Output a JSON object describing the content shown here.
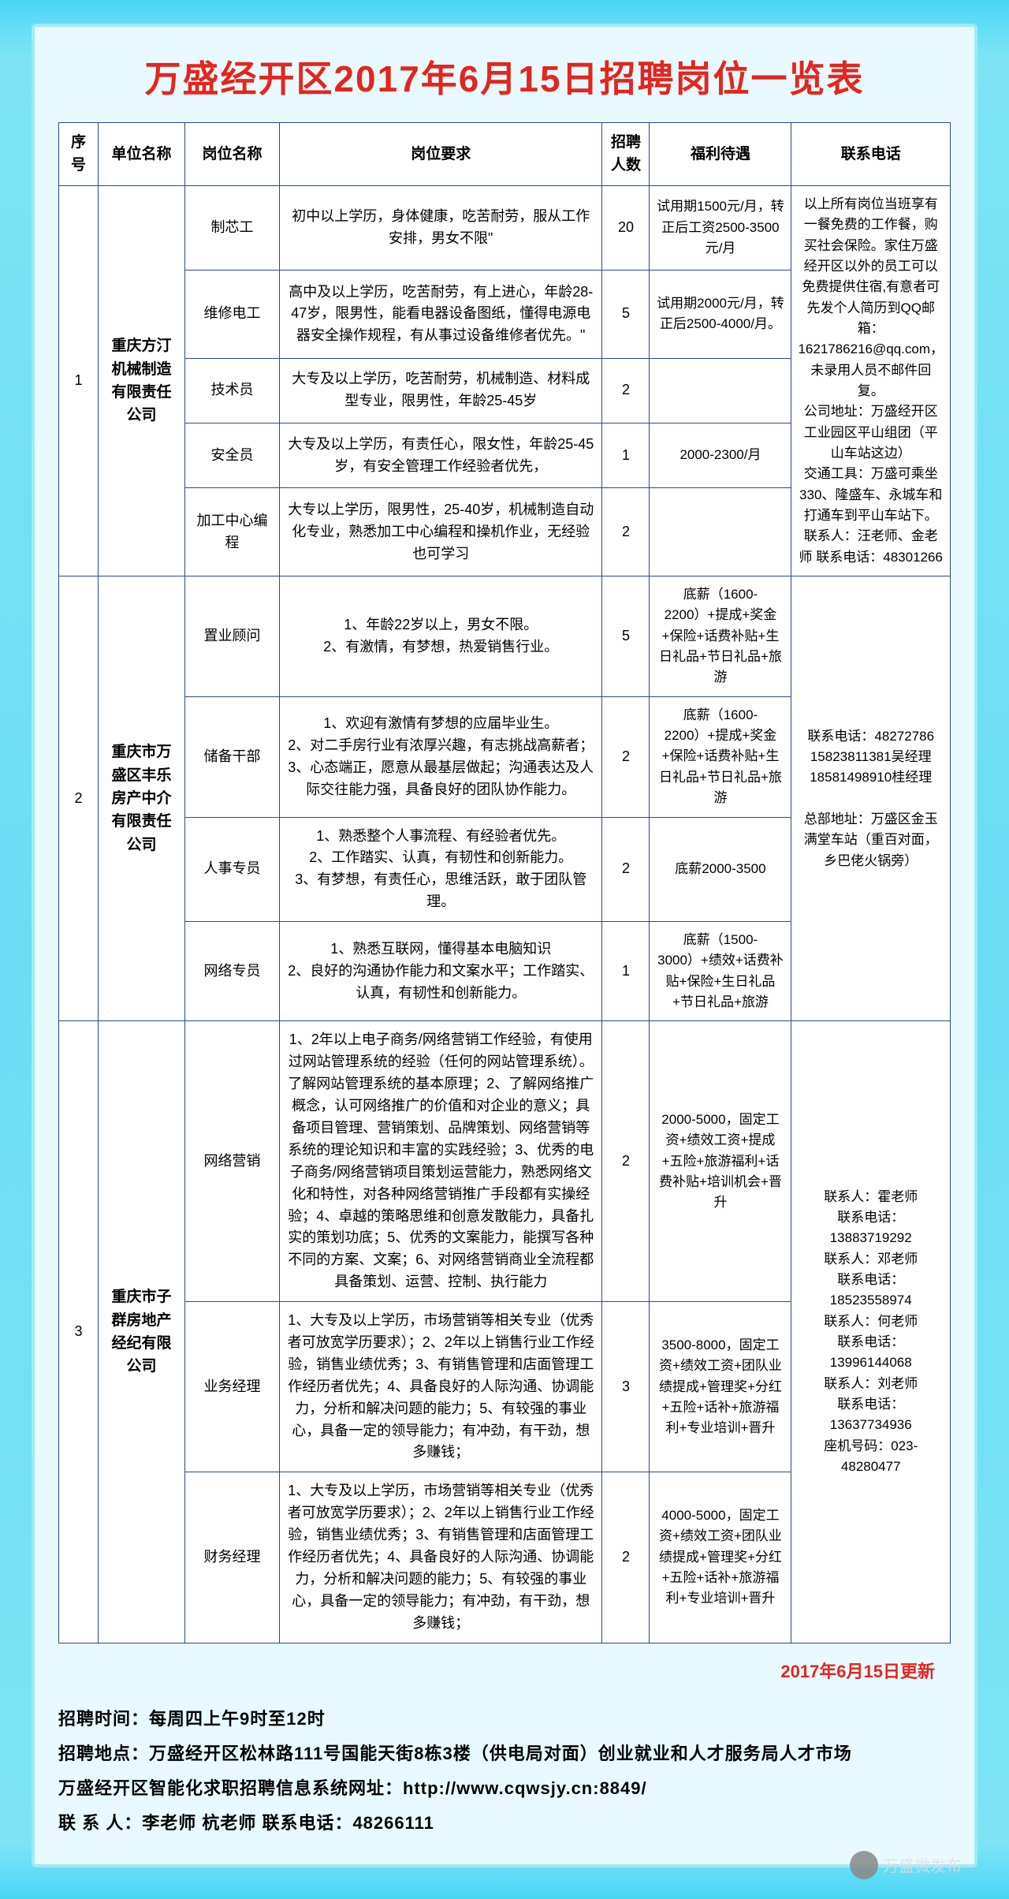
{
  "title": "万盛经开区2017年6月15日招聘岗位一览表",
  "headers": {
    "no": "序号",
    "company": "单位名称",
    "position": "岗位名称",
    "requirement": "岗位要求",
    "count": "招聘人数",
    "benefit": "福利待遇",
    "contact": "联系电话"
  },
  "groups": [
    {
      "no": "1",
      "company": "重庆方汀机械制造有限责任公司",
      "contact": "以上所有岗位当班享有一餐免费的工作餐，购买社会保险。家住万盛经开区以外的员工可以免费提供住宿,有意者可先发个人简历到QQ邮箱：1621786216@qq.com，未录用人员不邮件回复。\n公司地址：万盛经开区工业园区平山组团（平山车站这边）\n交通工具：万盛可乘坐330、隆盛车、永城车和打通车到平山车站下。\n联系人：汪老师、金老师    联系电话：48301266",
      "rows": [
        {
          "pos": "制芯工",
          "req": "初中以上学历，身体健康，吃苦耐劳，服从工作安排，男女不限\"",
          "cnt": "20",
          "ben": "试用期1500元/月，转正后工资2500-3500元/月"
        },
        {
          "pos": "维修电工",
          "req": "高中及以上学历，吃苦耐劳，有上进心，年龄28-47岁，限男性，能看电器设备图纸，懂得电源电器安全操作规程，有从事过设备维修者优先。\"",
          "cnt": "5",
          "ben": "试用期2000元/月，转正后2500-4000/月。"
        },
        {
          "pos": "技术员",
          "req": "大专及以上学历，吃苦耐劳，机械制造、材料成型专业，限男性，年龄25-45岁",
          "cnt": "2",
          "ben": ""
        },
        {
          "pos": "安全员",
          "req": "大专及以上学历，有责任心，限女性，年龄25-45岁，有安全管理工作经验者优先，",
          "cnt": "1",
          "ben": "2000-2300/月"
        },
        {
          "pos": "加工中心编程",
          "req": "大专以上学历，限男性，25-40岁，机械制造自动化专业，熟悉加工中心编程和操机作业，无经验也可学习",
          "cnt": "2",
          "ben": ""
        }
      ]
    },
    {
      "no": "2",
      "company": "重庆市万盛区丰乐房产中介有限责任公司",
      "contact": "联系电话：48272786\n15823811381吴经理\n18581498910桂经理\n\n总部地址：万盛区金玉满堂车站（重百对面，乡巴佬火锅旁）",
      "rows": [
        {
          "pos": "置业顾问",
          "req": "1、年龄22岁以上，男女不限。\n2、有激情，有梦想，热爱销售行业。",
          "cnt": "5",
          "ben": "底薪（1600-2200）+提成+奖金+保险+话费补贴+生日礼品+节日礼品+旅游"
        },
        {
          "pos": "储备干部",
          "req": "1、欢迎有激情有梦想的应届毕业生。\n2、对二手房行业有浓厚兴趣，有志挑战高薪者；3、心态端正，愿意从最基层做起；沟通表达及人际交往能力强，具备良好的团队协作能力。",
          "cnt": "2",
          "ben": "底薪（1600-2200）+提成+奖金+保险+话费补贴+生日礼品+节日礼品+旅游"
        },
        {
          "pos": "人事专员",
          "req": "1、熟悉整个人事流程、有经验者优先。\n2、工作踏实、认真，有韧性和创新能力。\n3、有梦想，有责任心，思维活跃，敢于团队管理。",
          "cnt": "2",
          "ben": "底薪2000-3500"
        },
        {
          "pos": "网络专员",
          "req": "1、熟悉互联网，懂得基本电脑知识\n2、良好的沟通协作能力和文案水平；工作踏实、认真，有韧性和创新能力。",
          "cnt": "1",
          "ben": "底薪（1500-3000）+绩效+话费补贴+保险+生日礼品+节日礼品+旅游"
        }
      ]
    },
    {
      "no": "3",
      "company": "重庆市子群房地产经纪有限公司",
      "contact": "联系人：霍老师\n联系电话：13883719292\n联系人：邓老师\n联系电话：18523558974\n联系人：何老师\n联系电话：13996144068\n联系人：刘老师\n联系电话：13637734936\n座机号码：023-48280477",
      "rows": [
        {
          "pos": "网络营销",
          "req": "1、2年以上电子商务/网络营销工作经验，有使用过网站管理系统的经验（任何的网站管理系统）。了解网站管理系统的基本原理；2、了解网络推广概念，认可网络推广的价值和对企业的意义；具备项目管理、营销策划、品牌策划、网络营销等系统的理论知识和丰富的实践经验；3、优秀的电子商务/网络营销项目策划运营能力，熟悉网络文化和特性，对各种网络营销推广手段都有实操经验；4、卓越的策略思维和创意发散能力，具备扎实的策划功底；5、优秀的文案能力，能撰写各种不同的方案、文案；6、对网络营销商业全流程都具备策划、运营、控制、执行能力",
          "cnt": "2",
          "ben": "2000-5000，固定工资+绩效工资+提成+五险+旅游福利+话费补贴+培训机会+晋升"
        },
        {
          "pos": "业务经理",
          "req": "1、大专及以上学历，市场营销等相关专业（优秀者可放宽学历要求）；2、2年以上销售行业工作经验，销售业绩优秀；3、有销售管理和店面管理工作经历者优先；4、具备良好的人际沟通、协调能力，分析和解决问题的能力；5、有较强的事业心，具备一定的领导能力；有冲劲，有干劲，想多赚钱；",
          "cnt": "3",
          "ben": "3500-8000，固定工资+绩效工资+团队业绩提成+管理奖+分红+五险+话补+旅游福利+专业培训+晋升"
        },
        {
          "pos": "财务经理",
          "req": "1、大专及以上学历，市场营销等相关专业（优秀者可放宽学历要求）；2、2年以上销售行业工作经验，销售业绩优秀；3、有销售管理和店面管理工作经历者优先；4、具备良好的人际沟通、协调能力，分析和解决问题的能力；5、有较强的事业心，具备一定的领导能力；有冲劲，有干劲，想多赚钱；",
          "cnt": "2",
          "ben": "4000-5000，固定工资+绩效工资+团队业绩提成+管理奖+分红+五险+话补+旅游福利+专业培训+晋升"
        }
      ]
    }
  ],
  "update_note": "2017年6月15日更新",
  "footer": {
    "l1": "招聘时间：每周四上午9时至12时",
    "l2": "招聘地点：万盛经开区松林路111号国能天街8栋3楼（供电局对面）创业就业和人才服务局人才市场",
    "l3": "万盛经开区智能化求职招聘信息系统网址：http://www.cqwsjy.cn:8849/",
    "l4": "联 系 人：李老师  杭老师    联系电话：48266111"
  },
  "wechat": "万盛微发布"
}
